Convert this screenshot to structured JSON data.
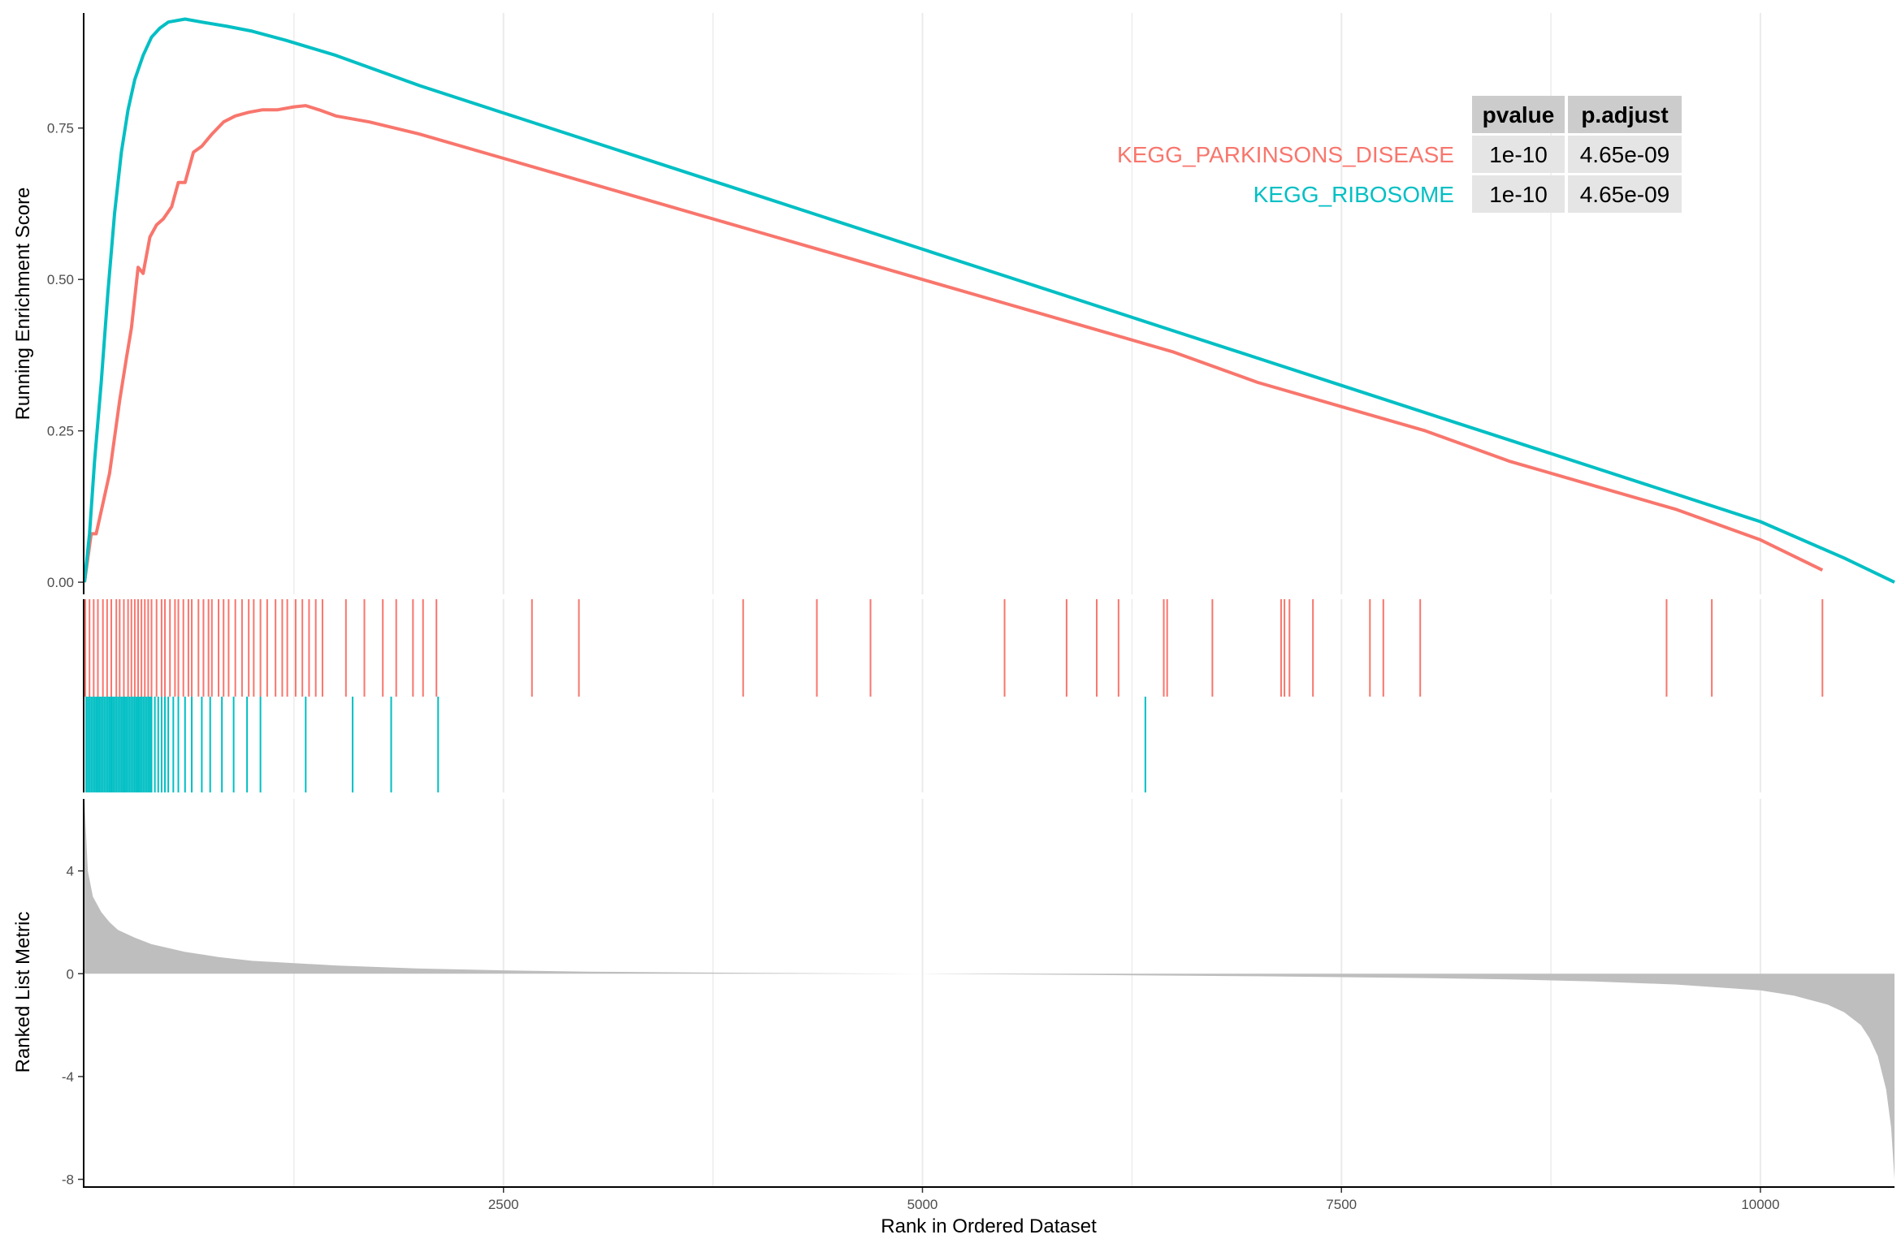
{
  "chart_data": {
    "type": "line",
    "title": "",
    "colors": {
      "parkinsons": "#F8766D",
      "ribosome": "#00BFC4",
      "metric": "#BEBEBE",
      "grid": "#EBEBEB",
      "table_header": "#CCCCCC",
      "table_cell": "#E5E5E5"
    },
    "panels": {
      "running_score": {
        "ylabel": "Running Enrichment Score",
        "ylim": [
          -0.02,
          0.94
        ],
        "yticks": [
          0.0,
          0.25,
          0.5,
          0.75
        ],
        "ytick_labels": [
          "0.00",
          "0.25",
          "0.50",
          "0.75"
        ]
      },
      "ranked_metric": {
        "ylabel": "Ranked List Metric",
        "ylim": [
          -8.3,
          6.8
        ],
        "yticks": [
          4,
          0,
          -4,
          -8
        ],
        "ytick_labels": [
          "4",
          "0",
          "-4",
          "-8"
        ]
      }
    },
    "x_axis": {
      "xlabel": "Rank in Ordered Dataset",
      "xlim": [
        0,
        10800
      ],
      "xticks": [
        2500,
        5000,
        7500,
        10000
      ],
      "xtick_labels": [
        "2500",
        "5000",
        "7500",
        "10000"
      ]
    },
    "series": [
      {
        "name": "KEGG_PARKINSONS_DISEASE",
        "color": "#F8766D",
        "x": [
          0,
          40,
          70,
          110,
          150,
          180,
          210,
          250,
          280,
          320,
          350,
          390,
          430,
          470,
          520,
          560,
          600,
          650,
          700,
          760,
          830,
          900,
          980,
          1060,
          1150,
          1250,
          1320,
          1400,
          1500,
          1700,
          2000,
          2500,
          3000,
          3500,
          4000,
          4500,
          5000,
          5500,
          6000,
          6500,
          7000,
          7500,
          8000,
          8500,
          9000,
          9500,
          10000,
          10370
        ],
        "y": [
          0.0,
          0.08,
          0.08,
          0.13,
          0.18,
          0.24,
          0.3,
          0.37,
          0.42,
          0.52,
          0.51,
          0.57,
          0.59,
          0.6,
          0.62,
          0.66,
          0.66,
          0.71,
          0.72,
          0.74,
          0.76,
          0.77,
          0.776,
          0.78,
          0.78,
          0.785,
          0.787,
          0.78,
          0.77,
          0.76,
          0.74,
          0.7,
          0.66,
          0.62,
          0.58,
          0.54,
          0.5,
          0.46,
          0.42,
          0.38,
          0.33,
          0.29,
          0.25,
          0.2,
          0.16,
          0.12,
          0.07,
          0.02
        ]
      },
      {
        "name": "KEGG_RIBOSOME",
        "color": "#00BFC4",
        "x": [
          0,
          30,
          60,
          100,
          140,
          180,
          220,
          260,
          300,
          350,
          400,
          450,
          500,
          600,
          700,
          850,
          1000,
          1200,
          1500,
          2000,
          2500,
          3000,
          3500,
          4000,
          4500,
          5000,
          5500,
          6000,
          6500,
          7000,
          7500,
          8000,
          8500,
          9000,
          9500,
          10000,
          10500,
          10800
        ],
        "y": [
          0.0,
          0.08,
          0.2,
          0.33,
          0.48,
          0.61,
          0.71,
          0.78,
          0.83,
          0.87,
          0.9,
          0.915,
          0.925,
          0.93,
          0.925,
          0.918,
          0.91,
          0.895,
          0.87,
          0.82,
          0.775,
          0.73,
          0.685,
          0.64,
          0.595,
          0.55,
          0.505,
          0.46,
          0.415,
          0.37,
          0.325,
          0.28,
          0.235,
          0.19,
          0.145,
          0.1,
          0.04,
          0.0
        ]
      }
    ],
    "hit_positions": {
      "KEGG_PARKINSONS_DISEASE": [
        5,
        30,
        55,
        80,
        110,
        135,
        160,
        190,
        210,
        235,
        260,
        280,
        300,
        320,
        340,
        360,
        380,
        400,
        430,
        460,
        480,
        510,
        540,
        560,
        590,
        620,
        640,
        680,
        710,
        740,
        760,
        800,
        830,
        860,
        900,
        940,
        980,
        1010,
        1050,
        1090,
        1140,
        1180,
        1210,
        1260,
        1300,
        1340,
        1380,
        1420,
        1560,
        1670,
        1780,
        1860,
        1960,
        2020,
        2100,
        2670,
        2950,
        3930,
        4370,
        4690,
        5490,
        5860,
        6040,
        6170,
        6440,
        6460,
        6730,
        7140,
        7160,
        7190,
        7330,
        7670,
        7750,
        7970,
        9440,
        9710,
        10370
      ],
      "KEGG_RIBOSOME": [
        10,
        20,
        30,
        40,
        50,
        60,
        70,
        80,
        90,
        100,
        110,
        120,
        130,
        140,
        150,
        160,
        170,
        180,
        190,
        200,
        210,
        220,
        230,
        240,
        250,
        260,
        270,
        280,
        290,
        300,
        310,
        320,
        330,
        340,
        350,
        360,
        370,
        380,
        390,
        400,
        420,
        440,
        460,
        480,
        500,
        530,
        560,
        600,
        640,
        700,
        750,
        820,
        890,
        970,
        1050,
        1320,
        1600,
        1830,
        2110,
        6330
      ]
    },
    "ranked_metric": {
      "x": [
        0,
        20,
        50,
        100,
        150,
        200,
        300,
        400,
        600,
        800,
        1000,
        1500,
        2000,
        2500,
        3000,
        4000,
        5000,
        6000,
        7000,
        8000,
        8500,
        9000,
        9500,
        10000,
        10200,
        10400,
        10500,
        10600,
        10650,
        10700,
        10750,
        10780,
        10800
      ],
      "y": [
        6.7,
        4.0,
        3.0,
        2.4,
        2.0,
        1.7,
        1.4,
        1.15,
        0.85,
        0.65,
        0.5,
        0.32,
        0.2,
        0.13,
        0.08,
        0.03,
        0.0,
        -0.05,
        -0.1,
        -0.17,
        -0.22,
        -0.3,
        -0.42,
        -0.65,
        -0.85,
        -1.2,
        -1.5,
        -2.0,
        -2.5,
        -3.2,
        -4.5,
        -6.0,
        -8.0
      ]
    },
    "table": {
      "headers": [
        "pvalue",
        "p.adjust"
      ],
      "rows": [
        {
          "label": "KEGG_PARKINSONS_DISEASE",
          "pvalue": "1e-10",
          "padjust": "4.65e-09"
        },
        {
          "label": "KEGG_RIBOSOME",
          "pvalue": "1e-10",
          "padjust": "4.65e-09"
        }
      ]
    }
  }
}
